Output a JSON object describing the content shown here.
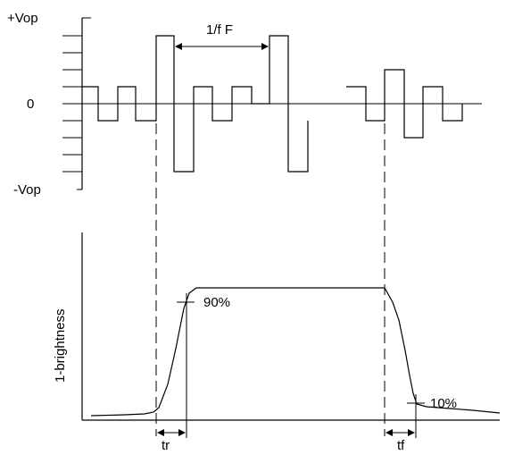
{
  "waveform": {
    "vop_pos_label": "+Vop",
    "zero_label": "0",
    "vop_neg_label": "-Vop",
    "period_label": "1/f F"
  },
  "response": {
    "ylabel": "1-brightness",
    "high_label": "90%",
    "low_label": "10%",
    "rise_label": "tr",
    "fall_label": "tf"
  }
}
